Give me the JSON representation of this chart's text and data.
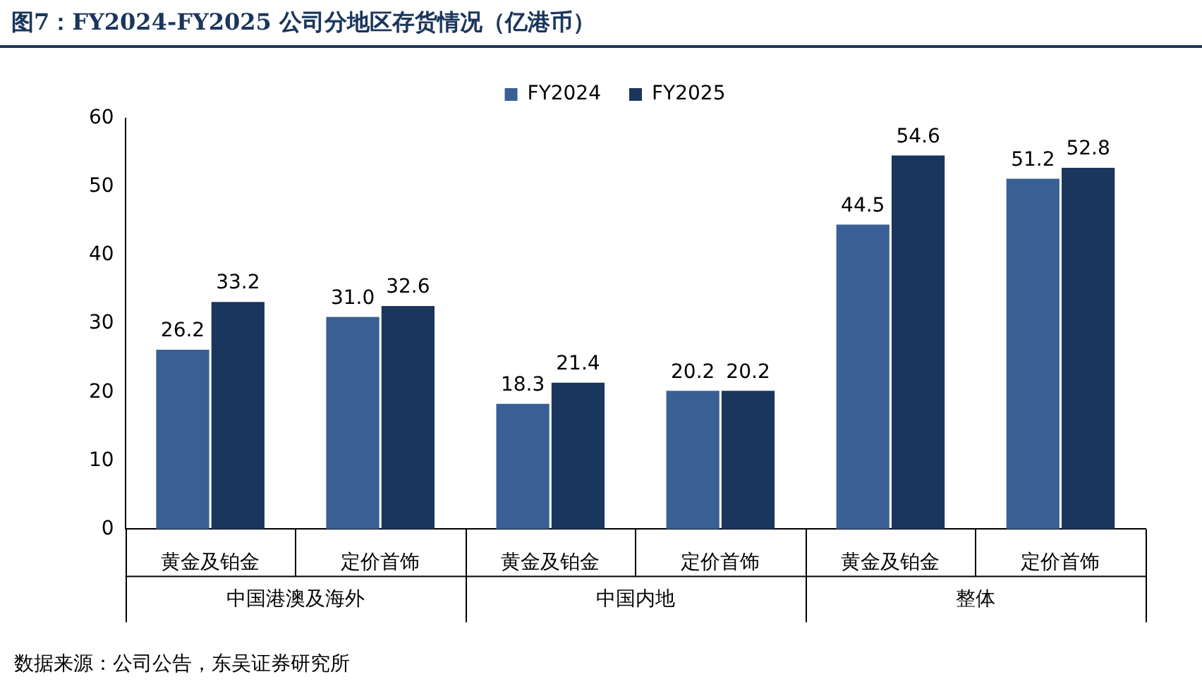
{
  "chart_data": {
    "type": "bar",
    "title": "图7：FY2024-FY2025 公司分地区存货情况（亿港币）",
    "categories": [
      "黄金及铂金",
      "定价首饰",
      "黄金及铂金",
      "定价首饰",
      "黄金及铂金",
      "定价首饰"
    ],
    "series": [
      {
        "name": "FY2024",
        "color": "#3a5f94",
        "values": [
          26.2,
          31.0,
          18.3,
          20.2,
          44.5,
          51.2
        ],
        "value_labels": [
          "26.2",
          "31.0",
          "18.3",
          "20.2",
          "44.5",
          "51.2"
        ]
      },
      {
        "name": "FY2025",
        "color": "#1b365d",
        "values": [
          33.2,
          32.6,
          21.4,
          20.2,
          54.6,
          52.8
        ],
        "value_labels": [
          "33.2",
          "32.6",
          "21.4",
          "20.2",
          "54.6",
          "52.8"
        ]
      }
    ],
    "ylim": [
      0,
      60
    ],
    "yticks": [
      0,
      10,
      20,
      30,
      40,
      50,
      60
    ],
    "grid": false,
    "legend": "top",
    "annotations": [
      "中国港澳及海外",
      "中国内地",
      "整体",
      "数据来源：公司公告，东吴证券研究所"
    ]
  }
}
